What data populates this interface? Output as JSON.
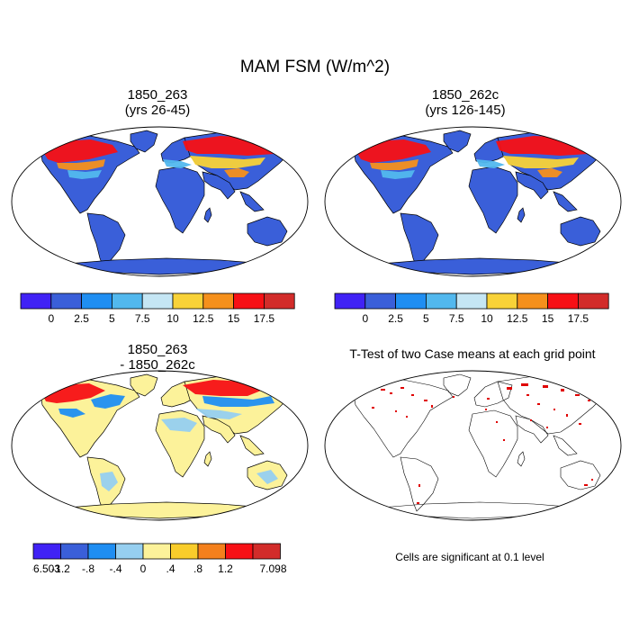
{
  "figure": {
    "title": "MAM FSM (W/m^2)",
    "panels": [
      {
        "id": "p1",
        "title_line1": "1850_263",
        "title_line2": "(yrs 26-45)"
      },
      {
        "id": "p2",
        "title_line1": "1850_262c",
        "title_line2": "(yrs 126-145)"
      },
      {
        "id": "p3",
        "title_line1": "1850_263",
        "title_line2": "- 1850_262c"
      },
      {
        "id": "p4",
        "title_line1": "T-Test of two Case means at each grid point",
        "title_line2": ""
      }
    ],
    "significance_note": "Cells are significant at 0.1 level"
  },
  "colorbars": {
    "abs": {
      "colors": [
        "#4022f5",
        "#3a5fd9",
        "#1f8ef2",
        "#52b8ee",
        "#c5e6f4",
        "#f8d238",
        "#f5901c",
        "#f71015",
        "#d22c2a"
      ],
      "labels": [
        "0",
        "2.5",
        "5",
        "7.5",
        "10",
        "12.5",
        "15",
        "17.5"
      ]
    },
    "diff": {
      "colors": [
        "#4022f5",
        "#3a5fd9",
        "#1f8ef2",
        "#96cff0",
        "#fcf29a",
        "#f9cd2b",
        "#f4801c",
        "#f71015",
        "#d22c2a"
      ],
      "labels": [
        "-6.503",
        "-1.2",
        "-.8",
        "-.4",
        "0",
        ".4",
        ".8",
        "1.2",
        "7.098"
      ]
    }
  },
  "map_colors": {
    "abs_land": "#3a5fd9",
    "abs_hot": "#f71015",
    "abs_warm": "#f5901c",
    "abs_mid": "#f8d238",
    "abs_light": "#52b8ee",
    "diff_land": "#fcf29a",
    "diff_neg": "#1f8ef2",
    "diff_light": "#96cff0",
    "diff_pos": "#f71015",
    "sig": "#e00000"
  }
}
